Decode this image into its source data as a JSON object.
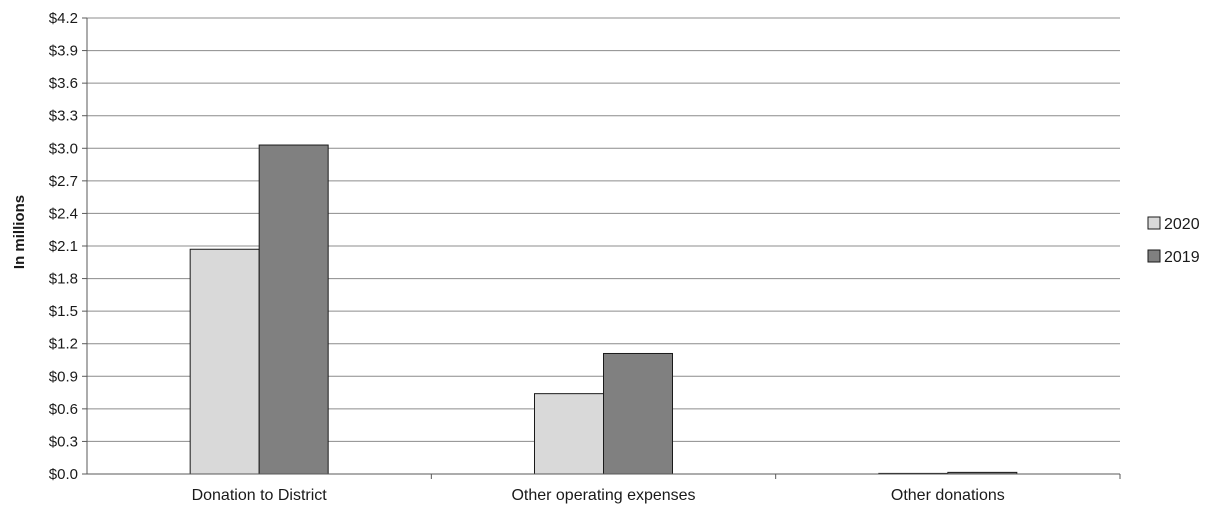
{
  "chart_data": {
    "type": "bar",
    "categories": [
      "Donation to District",
      "Other operating expenses",
      "Other donations"
    ],
    "series": [
      {
        "name": "2020",
        "values": [
          2.07,
          0.74,
          0.005
        ],
        "color": "#d9d9d9"
      },
      {
        "name": "2019",
        "values": [
          3.03,
          1.11,
          0.015
        ],
        "color": "#808080"
      }
    ],
    "ylabel": "In millions",
    "ylim": [
      0,
      4.2
    ],
    "yticks": [
      "$0.0",
      "$0.3",
      "$0.6",
      "$0.9",
      "$1.2",
      "$1.5",
      "$1.8",
      "$2.1",
      "$2.4",
      "$2.7",
      "$3.0",
      "$3.3",
      "$3.6",
      "$3.9",
      "$4.2"
    ],
    "grid": true,
    "legend_position": "right"
  }
}
